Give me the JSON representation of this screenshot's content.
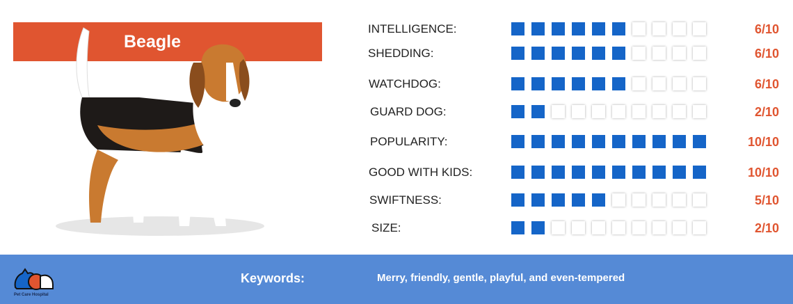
{
  "breed": {
    "name": "Beagle"
  },
  "traits": [
    {
      "label": "INTELLIGENCE:",
      "value": 6,
      "max": 10,
      "score": "6/10"
    },
    {
      "label": "SHEDDING:",
      "value": 6,
      "max": 10,
      "score": "6/10"
    },
    {
      "label": "WATCHDOG:",
      "value": 6,
      "max": 10,
      "score": "6/10"
    },
    {
      "label": "GUARD DOG:",
      "value": 2,
      "max": 10,
      "score": "2/10"
    },
    {
      "label": "POPULARITY:",
      "value": 10,
      "max": 10,
      "score": "10/10"
    },
    {
      "label": "GOOD WITH KIDS:",
      "value": 10,
      "max": 10,
      "score": "10/10"
    },
    {
      "label": "SWIFTNESS:",
      "value": 5,
      "max": 10,
      "score": "5/10"
    },
    {
      "label": "SIZE:",
      "value": 2,
      "max": 10,
      "score": "2/10"
    }
  ],
  "footer": {
    "keywords_label": "Keywords:",
    "keywords": "Merry, friendly, gentle, playful, and even-tempered",
    "logo_text": "Pet Care Hospital"
  },
  "colors": {
    "accent": "#e05530",
    "filled": "#1565c8",
    "footer": "#558ad6"
  }
}
